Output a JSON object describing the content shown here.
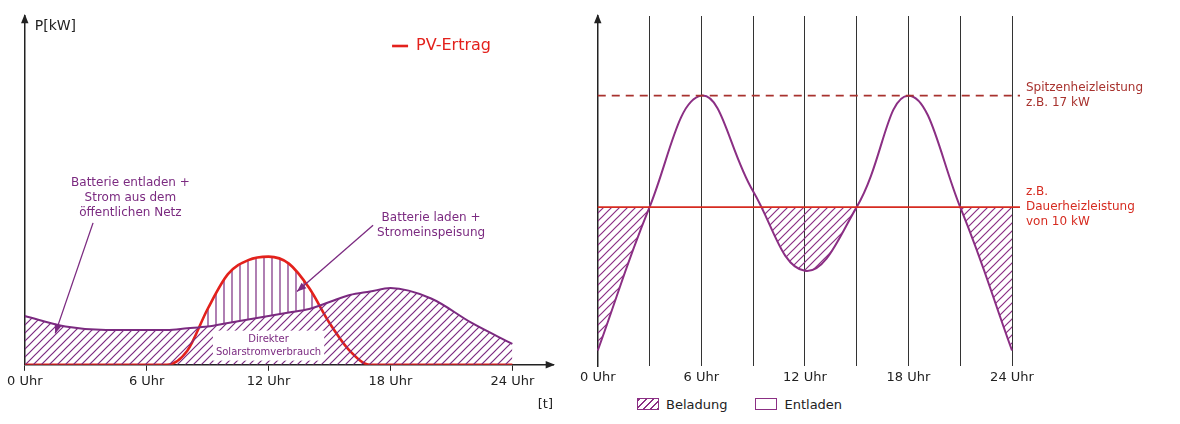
{
  "chart_data": [
    {
      "type": "line",
      "x": [
        0,
        2,
        4,
        6,
        7,
        8,
        9,
        10,
        11,
        12,
        13,
        14,
        15,
        16,
        17,
        18,
        20,
        22,
        24
      ],
      "xlim": [
        0,
        26
      ],
      "xticks": [
        {
          "value": 0,
          "label": "0 Uhr"
        },
        {
          "value": 6,
          "label": "6 Uhr"
        },
        {
          "value": 12,
          "label": "12 Uhr"
        },
        {
          "value": 18,
          "label": "18 Uhr"
        },
        {
          "value": 24,
          "label": "24 Uhr"
        }
      ],
      "ylim": [
        0,
        10
      ],
      "tick_labels": "x",
      "x_label": "[t]",
      "y_label": "P[kW]",
      "legend": "top-right",
      "series": [
        {
          "color": "#7b2a80",
          "values": [
            1.4,
            1.1,
            1.0,
            1.0,
            1.0,
            1.05,
            1.1,
            1.2,
            1.3,
            1.4,
            1.5,
            1.6,
            1.8,
            2.0,
            2.1,
            2.2,
            1.9,
            1.2,
            0.6
          ]
        },
        {
          "name": "PV-Ertrag",
          "color": "#e3211c",
          "values": [
            0,
            0,
            0,
            0,
            0,
            0.4,
            1.6,
            2.6,
            3.0,
            3.1,
            2.9,
            2.2,
            1.2,
            0.4,
            0,
            0,
            0,
            0,
            0
          ]
        }
      ],
      "annotations": [
        "Batterie entladen + Strom aus dem öffentlichen Netz",
        "Batterie laden + Stromeinspeisung",
        "Direkter Solarstromverbrauch"
      ]
    },
    {
      "type": "line",
      "categories": [
        "0 Uhr",
        null,
        "6 Uhr",
        null,
        "12 Uhr",
        null,
        "18 Uhr",
        null,
        "24 Uhr"
      ],
      "values": [
        1,
        10,
        17,
        11,
        6,
        10,
        17,
        10,
        1
      ],
      "color": "#8b2f84",
      "ylim": [
        0,
        22
      ],
      "tick_labels": "x",
      "grid": true,
      "legend": "bottom",
      "legend_items": [
        "Beladung",
        "Entladen"
      ],
      "annotations": [
        {
          "text": "Spitzenheizleistung z.B. 17 kW",
          "value": 17,
          "line_style": "dashed",
          "color": "#a8322e"
        },
        {
          "text": "z.B. Dauerheizleistung von 10 kW",
          "value": 10,
          "line_style": "solid",
          "color": "#d62b20"
        }
      ]
    }
  ]
}
